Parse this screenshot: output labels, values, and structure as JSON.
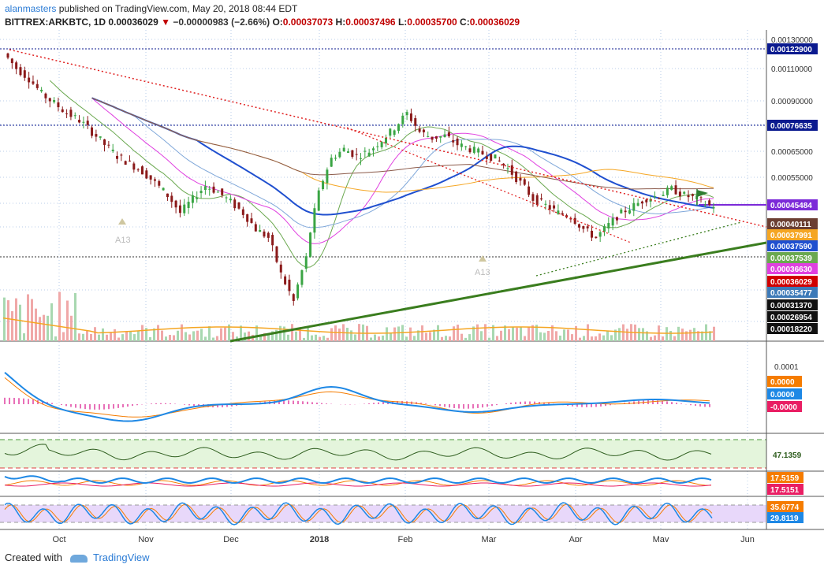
{
  "header": {
    "user": "alanmasters",
    "published": "published on TradingView.com, May 20, 2018 08:44 EDT",
    "symbol": "BITTREX:ARKBTC, 1D",
    "last": "0.00036029",
    "change": "−0.00000983 (−2.66%)",
    "o_label": "O:",
    "o": "0.00037073",
    "h_label": "H:",
    "h": "0.00037496",
    "l_label": "L:",
    "l": "0.00035700",
    "c_label": "C:",
    "c": "0.00036029"
  },
  "footer": {
    "created": "Created with",
    "brand": "TradingView"
  },
  "colors": {
    "price_red": "#c00000",
    "trend_green": "#3a7d1e",
    "ma_blue": "#1f4fcf",
    "ma_magenta": "#e040e0",
    "ma_orange": "#f5a623",
    "ma_brown": "#8b5a4a"
  },
  "chart_data": {
    "type": "line",
    "x_ticks": [
      "Oct",
      "Nov",
      "Dec",
      "2018",
      "Feb",
      "Mar",
      "Apr",
      "May",
      "Jun"
    ],
    "y_ticks": [
      "0.00130000",
      "0.00110000",
      "0.00090000",
      "0.00065000",
      "0.00055000"
    ],
    "price_labels": [
      {
        "text": "0.00122900",
        "color": "#0b1a8f"
      },
      {
        "text": "0.00076635",
        "color": "#0b1a8f"
      },
      {
        "text": "0.00045484",
        "color": "#7c2ad8"
      },
      {
        "text": "0.00040111",
        "color": "#6b3e32"
      },
      {
        "text": "0.00037991",
        "color": "#f5a623"
      },
      {
        "text": "0.00037590",
        "color": "#1f4fcf"
      },
      {
        "text": "0.00037539",
        "color": "#6aa84f"
      },
      {
        "text": "0.00036630",
        "color": "#e040e0"
      },
      {
        "text": "0.00036029",
        "color": "#d00000"
      },
      {
        "text": "0.00035477",
        "color": "#3d7ab8"
      },
      {
        "text": "0.00031370",
        "color": "#111111"
      },
      {
        "text": "0.00026954",
        "color": "#111111"
      },
      {
        "text": "0.00018220",
        "color": "#111111"
      }
    ],
    "price_close": [
      0.00118,
      0.00105,
      0.00097,
      0.00086,
      0.0008,
      0.00074,
      0.0007,
      0.00064,
      0.00058,
      0.00053,
      0.0005,
      0.00047,
      0.00043,
      0.00039,
      0.00034,
      0.00038,
      0.00042,
      0.0004,
      0.00037,
      0.00034,
      0.0003,
      0.00028,
      0.00021,
      0.00017,
      0.00024,
      0.0004,
      0.00052,
      0.00056,
      0.00053,
      0.00055,
      0.0006,
      0.00066,
      0.00074,
      0.00064,
      0.00061,
      0.00062,
      0.00058,
      0.00056,
      0.00054,
      0.00052,
      0.00048,
      0.00043,
      0.00038,
      0.00036,
      0.00034,
      0.00033,
      0.0003,
      0.00028,
      0.00031,
      0.00034,
      0.00036,
      0.00038,
      0.00039,
      0.00041,
      0.00039,
      0.00038,
      0.00036
    ],
    "annotations": [
      "A13",
      "A13"
    ],
    "macd_ticks": [
      "0.0001"
    ],
    "macd_labels": [
      {
        "text": "0.0000",
        "color": "#f57c00"
      },
      {
        "text": "0.0000",
        "color": "#1e88e5"
      },
      {
        "text": "-0.0000",
        "color": "#e91e63"
      }
    ],
    "osc1_label": {
      "text": "47.1359",
      "color": "#2e5d1e"
    },
    "dmi_labels": [
      {
        "text": "17.5159",
        "color": "#f57c00"
      },
      {
        "text": "17.5151",
        "color": "#e91e63"
      }
    ],
    "stoch_labels": [
      {
        "text": "35.6774",
        "color": "#f57c00"
      },
      {
        "text": "29.8119",
        "color": "#1e88e5"
      }
    ]
  }
}
